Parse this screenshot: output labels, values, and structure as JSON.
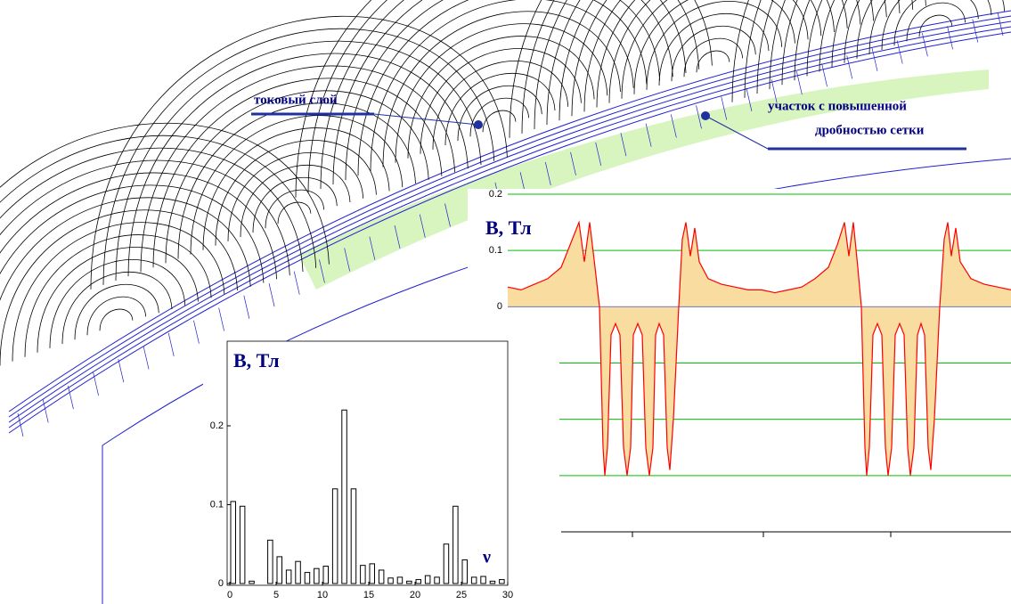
{
  "chart_data": [
    {
      "type": "area",
      "y_label": "B, Тл",
      "x": [
        0,
        1.5,
        3,
        4.5,
        6,
        7,
        8,
        8.6,
        9.2,
        9.8,
        10.3,
        10.7,
        10.9,
        11.2,
        11.6,
        12.1,
        12.6,
        13.0,
        13.4,
        13.8,
        14.1,
        14.6,
        15.1,
        15.5,
        15.9,
        16.3,
        16.6,
        17.0,
        17.5,
        17.9,
        18.2,
        18.6,
        19.2,
        19.6,
        20.0,
        20.5,
        21.0,
        21.5,
        22.5,
        24,
        25.5,
        27,
        28.5,
        30,
        31.5,
        33,
        34.5,
        36,
        37,
        37.8,
        38.3,
        38.8,
        39.3,
        39.7,
        40.1,
        40.3,
        40.6,
        41.0,
        41.5,
        42.0,
        42.4,
        42.7,
        43.1,
        43.5,
        44.0,
        44.5,
        44.9,
        45.2,
        45.6,
        46.0,
        46.4,
        46.8,
        47.2,
        47.5,
        47.9,
        48.5,
        49.0,
        49.4,
        49.8,
        50.3,
        50.8,
        52,
        53.5,
        55,
        56.5
      ],
      "values": [
        0.035,
        0.03,
        0.04,
        0.05,
        0.07,
        0.11,
        0.15,
        0.08,
        0.15,
        0.07,
        0,
        -0.25,
        -0.3,
        -0.25,
        -0.05,
        -0.03,
        -0.05,
        -0.25,
        -0.3,
        -0.25,
        -0.05,
        -0.03,
        -0.05,
        -0.25,
        -0.3,
        -0.25,
        -0.05,
        -0.03,
        -0.05,
        -0.25,
        -0.29,
        -0.2,
        0,
        0.12,
        0.15,
        0.09,
        0.14,
        0.08,
        0.05,
        0.04,
        0.035,
        0.03,
        0.03,
        0.025,
        0.03,
        0.035,
        0.05,
        0.07,
        0.11,
        0.15,
        0.09,
        0.15,
        0.07,
        0,
        -0.25,
        -0.3,
        -0.25,
        -0.05,
        -0.03,
        -0.05,
        -0.25,
        -0.3,
        -0.25,
        -0.05,
        -0.03,
        -0.05,
        -0.25,
        -0.3,
        -0.25,
        -0.05,
        -0.03,
        -0.05,
        -0.25,
        -0.29,
        -0.2,
        0,
        0.12,
        0.15,
        0.09,
        0.14,
        0.08,
        0.05,
        0.04,
        0.035,
        0.03
      ],
      "color": "#ff0000",
      "fill_color": "#f8dca0",
      "grid_color": "#00c000",
      "xlim": [
        0,
        56.5
      ],
      "ylim": [
        -0.4,
        0.2
      ],
      "xticks": [
        {
          "value": 14,
          "label": null
        },
        {
          "value": 28.7,
          "label": null
        },
        {
          "value": 43,
          "label": null
        }
      ],
      "yticks": [
        {
          "value": -0.3,
          "label": null
        },
        {
          "value": -0.2,
          "label": null
        },
        {
          "value": -0.1,
          "label": null
        },
        0,
        0.1,
        0.2
      ],
      "grid": true
    },
    {
      "type": "bar",
      "y_label": "B, Тл",
      "x_label": "ν",
      "x": [
        0,
        1,
        2,
        3,
        4,
        5,
        6,
        7,
        8,
        9,
        10,
        11,
        12,
        13,
        14,
        15,
        16,
        17,
        18,
        19,
        20,
        21,
        22,
        23,
        24,
        25,
        26,
        27,
        28,
        29
      ],
      "values": [
        0.104,
        0.098,
        0.003,
        0,
        0.055,
        0.034,
        0.017,
        0.028,
        0.014,
        0.019,
        0.022,
        0.12,
        0.22,
        0.12,
        0.023,
        0.025,
        0.017,
        0.007,
        0.008,
        0.003,
        0.005,
        0.01,
        0.008,
        0.05,
        0.098,
        0.03,
        0.008,
        0.009,
        0.003,
        0.005
      ],
      "color": "#000000",
      "xlim": [
        0,
        30
      ],
      "ylim": [
        0,
        0.31
      ],
      "xticks": [
        0,
        5,
        10,
        15,
        20,
        25,
        30
      ],
      "yticks": [
        0,
        0.1,
        0.2
      ]
    }
  ],
  "annotations": [
    "токовый слой",
    "участок с повышенной",
    "дробностью сетки"
  ]
}
